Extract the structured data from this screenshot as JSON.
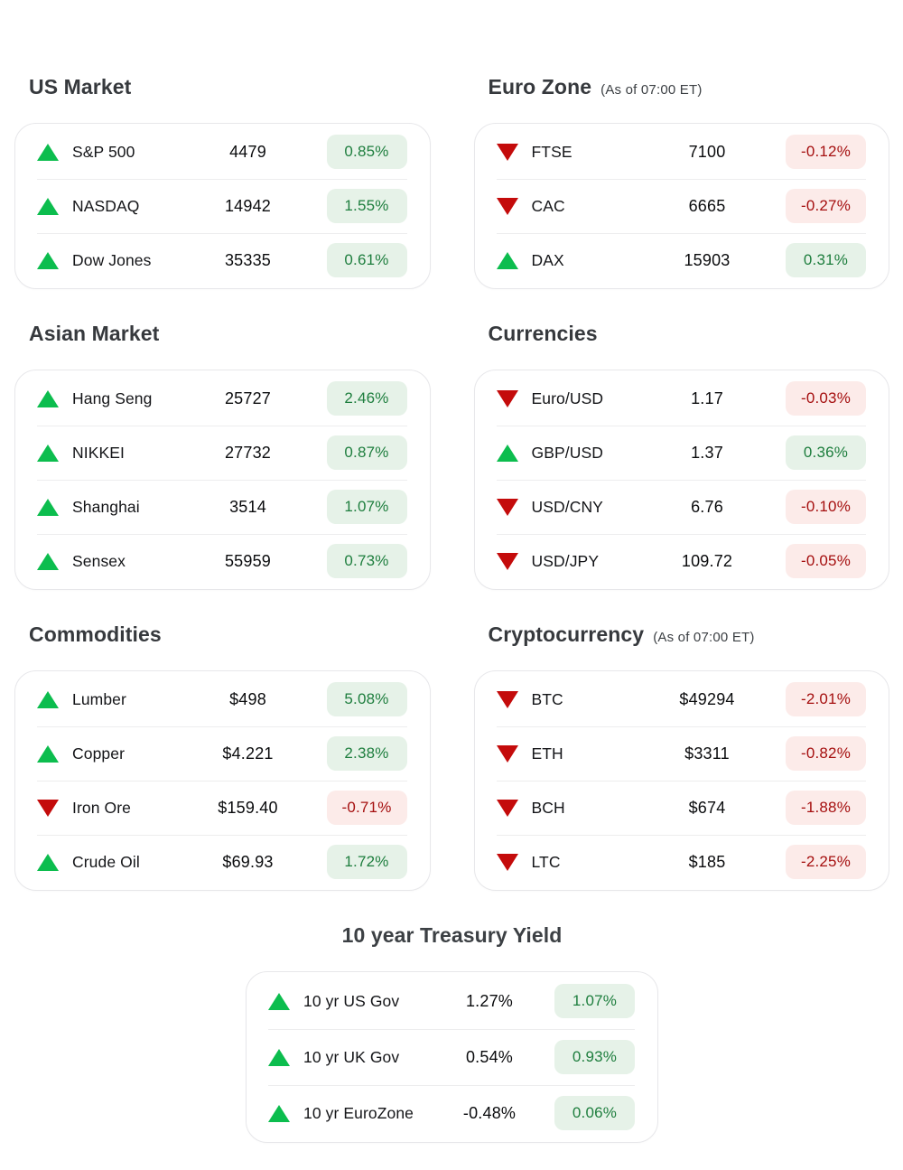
{
  "colors": {
    "up_green": "#0cbd4e",
    "down_red": "#c40b0b",
    "badge_up_bg": "#e6f2e8",
    "badge_up_text": "#1e7e3e",
    "badge_down_bg": "#fcebe9",
    "badge_down_text": "#a50f0f",
    "panel_border": "#e7e7ea",
    "divider": "#ededee"
  },
  "sections": [
    {
      "id": "us-market",
      "title": "US Market",
      "subtitle": "",
      "rows": [
        {
          "direction": "up",
          "label": "S&P 500",
          "value": "4479",
          "change": "0.85%"
        },
        {
          "direction": "up",
          "label": "NASDAQ",
          "value": "14942",
          "change": "1.55%"
        },
        {
          "direction": "up",
          "label": "Dow Jones",
          "value": "35335",
          "change": "0.61%"
        }
      ]
    },
    {
      "id": "euro-zone",
      "title": "Euro Zone",
      "subtitle": "(As of 07:00 ET)",
      "rows": [
        {
          "direction": "down",
          "label": "FTSE",
          "value": "7100",
          "change": "-0.12%"
        },
        {
          "direction": "down",
          "label": "CAC",
          "value": "6665",
          "change": "-0.27%"
        },
        {
          "direction": "up",
          "label": "DAX",
          "value": "15903",
          "change": "0.31%"
        }
      ]
    },
    {
      "id": "asian-market",
      "title": "Asian Market",
      "subtitle": "",
      "rows": [
        {
          "direction": "up",
          "label": "Hang Seng",
          "value": "25727",
          "change": "2.46%"
        },
        {
          "direction": "up",
          "label": "NIKKEI",
          "value": "27732",
          "change": "0.87%"
        },
        {
          "direction": "up",
          "label": "Shanghai",
          "value": "3514",
          "change": "1.07%"
        },
        {
          "direction": "up",
          "label": "Sensex",
          "value": "55959",
          "change": "0.73%"
        }
      ]
    },
    {
      "id": "currencies",
      "title": "Currencies",
      "subtitle": "",
      "rows": [
        {
          "direction": "down",
          "label": "Euro/USD",
          "value": "1.17",
          "change": "-0.03%"
        },
        {
          "direction": "up",
          "label": "GBP/USD",
          "value": "1.37",
          "change": "0.36%"
        },
        {
          "direction": "down",
          "label": "USD/CNY",
          "value": "6.76",
          "change": "-0.10%"
        },
        {
          "direction": "down",
          "label": "USD/JPY",
          "value": "109.72",
          "change": "-0.05%"
        }
      ]
    },
    {
      "id": "commodities",
      "title": "Commodities",
      "subtitle": "",
      "rows": [
        {
          "direction": "up",
          "label": "Lumber",
          "value": "$498",
          "change": "5.08%"
        },
        {
          "direction": "up",
          "label": "Copper",
          "value": "$4.221",
          "change": "2.38%"
        },
        {
          "direction": "down",
          "label": "Iron Ore",
          "value": "$159.40",
          "change": "-0.71%"
        },
        {
          "direction": "up",
          "label": "Crude Oil",
          "value": "$69.93",
          "change": "1.72%"
        }
      ]
    },
    {
      "id": "cryptocurrency",
      "title": "Cryptocurrency",
      "subtitle": "(As of 07:00 ET)",
      "rows": [
        {
          "direction": "down",
          "label": "BTC",
          "value": "$49294",
          "change": "-2.01%"
        },
        {
          "direction": "down",
          "label": "ETH",
          "value": "$3311",
          "change": "-0.82%"
        },
        {
          "direction": "down",
          "label": "BCH",
          "value": "$674",
          "change": "-1.88%"
        },
        {
          "direction": "down",
          "label": "LTC",
          "value": "$185",
          "change": "-2.25%"
        }
      ]
    },
    {
      "id": "treasury-yield",
      "title": "10 year Treasury Yield",
      "subtitle": "",
      "rows": [
        {
          "direction": "up",
          "label": "10 yr US Gov",
          "value": "1.27%",
          "change": "1.07%"
        },
        {
          "direction": "up",
          "label": "10 yr UK Gov",
          "value": "0.54%",
          "change": "0.93%"
        },
        {
          "direction": "up",
          "label": "10 yr EuroZone",
          "value": "-0.48%",
          "change": "0.06%"
        }
      ]
    }
  ]
}
